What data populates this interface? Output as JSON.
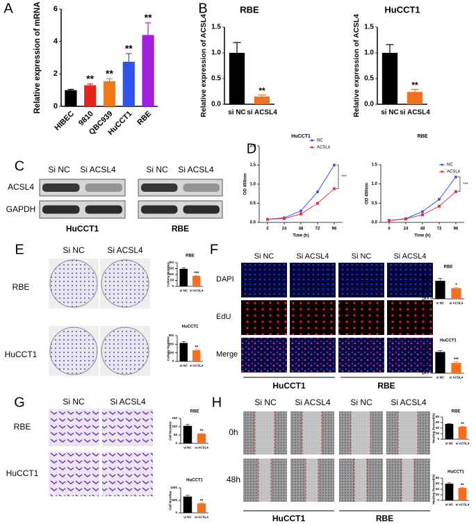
{
  "panel_letters": [
    "A",
    "B",
    "C",
    "D",
    "E",
    "F",
    "G",
    "H"
  ],
  "blot": {
    "columns": [
      "Si NC",
      "Si ACSL4",
      "Si NC",
      "Si ACSL4"
    ],
    "rows": [
      "ACSL4",
      "GAPDH"
    ],
    "cells": [
      "HuCCT1",
      "RBE"
    ]
  },
  "colony": {
    "columns": [
      "Si NC",
      "Si ACSL4"
    ],
    "rows": [
      "RBE",
      "HuCCT1"
    ]
  },
  "edu": {
    "columns": [
      "Si NC",
      "Si ACSL4",
      "Si NC",
      "Si ACSL4"
    ],
    "rows": [
      "DAPI",
      "EdU",
      "Merge"
    ],
    "cells": [
      "HuCCT1",
      "RBE"
    ]
  },
  "transwell": {
    "columns": [
      "Si NC",
      "Si ACSL4"
    ],
    "rows": [
      "RBE",
      "HuCCT1"
    ]
  },
  "wound": {
    "columns": [
      "Si NC",
      "Si ACSL4",
      "Si NC",
      "Si ACSL4"
    ],
    "rows": [
      "0h",
      "48h"
    ],
    "cells": [
      "HuCCT1",
      "RBE"
    ]
  },
  "chart_data": [
    {
      "type": "bar",
      "ylabel": "Relative expression of mRNA",
      "categories": [
        "HIBEC",
        "9810",
        "QBC939",
        "HuCCT1",
        "RBE"
      ],
      "values": [
        1.0,
        1.3,
        1.55,
        2.75,
        4.4
      ],
      "errors": [
        0.05,
        0.08,
        0.15,
        0.5,
        0.75
      ],
      "colors": [
        "#000000",
        "#e8221c",
        "#f07a1a",
        "#2f52e8",
        "#a21fe0"
      ],
      "annotations": [
        null,
        "**",
        "**",
        "**",
        "**"
      ],
      "ylim": [
        0,
        6
      ],
      "yticks": [
        0,
        2,
        4,
        6
      ]
    },
    {
      "type": "bar",
      "title": "RBE",
      "ylabel": "Relative expression of ACSL4",
      "categories": [
        "si NC",
        "si ACSL4"
      ],
      "values": [
        1.0,
        0.15
      ],
      "errors": [
        0.2,
        0.03
      ],
      "colors": [
        "#000000",
        "#f37021"
      ],
      "annotations": [
        null,
        "**"
      ],
      "ylim": [
        0,
        1.5
      ],
      "yticks": [
        {
          "value": 0,
          "label": "0.0"
        },
        0.5,
        {
          "value": 1,
          "label": "1.0"
        },
        1.5
      ]
    },
    {
      "type": "bar",
      "title": "HuCCT1",
      "ylabel": "Relative expression of ACSL4",
      "categories": [
        "si NC",
        "si ACSL4"
      ],
      "values": [
        1.0,
        0.24
      ],
      "errors": [
        0.16,
        0.05
      ],
      "colors": [
        "#000000",
        "#f37021"
      ],
      "annotations": [
        null,
        "**"
      ],
      "ylim": [
        0,
        1.5
      ],
      "yticks": [
        {
          "value": 0,
          "label": "0.0"
        },
        0.5,
        {
          "value": 1,
          "label": "1.0"
        },
        1.5
      ]
    },
    {
      "type": "line",
      "title": "HuCCT1",
      "xlabel": "Time (h)",
      "ylabel": "OD 450nm",
      "x": [
        0,
        24,
        48,
        72,
        96
      ],
      "series": [
        {
          "name": "NC",
          "color": "#3b4fe0",
          "values": [
            0.08,
            0.12,
            0.3,
            0.8,
            1.5
          ]
        },
        {
          "name": "ACSL4",
          "color": "#e8303a",
          "values": [
            0.08,
            0.1,
            0.22,
            0.5,
            0.88
          ]
        }
      ],
      "annotation": "***",
      "legend": "upper left",
      "xlim": [
        -12,
        108
      ],
      "xticks": [
        0,
        24,
        48,
        72,
        96
      ],
      "ylim": [
        0,
        2
      ],
      "yticks": [
        {
          "value": 0,
          "label": "0.0"
        },
        0.5,
        {
          "value": 1,
          "label": "1.0"
        },
        1.5,
        {
          "value": 2,
          "label": "2.0"
        }
      ]
    },
    {
      "type": "line",
      "title": "RBE",
      "xlabel": "Time (h)",
      "ylabel": "OD 450nm",
      "x": [
        0,
        24,
        48,
        72,
        96
      ],
      "series": [
        {
          "name": "NC",
          "color": "#3b4fe0",
          "values": [
            0.05,
            0.1,
            0.28,
            0.6,
            1.18
          ]
        },
        {
          "name": "ACSL4",
          "color": "#e8303a",
          "values": [
            0.05,
            0.09,
            0.2,
            0.42,
            0.8
          ]
        }
      ],
      "annotation": "***",
      "legend": "upper right",
      "xlim": [
        -12,
        108
      ],
      "xticks": [
        0,
        24,
        48,
        72,
        96
      ],
      "ylim": [
        0,
        1.5
      ],
      "yticks": [
        {
          "value": 0,
          "label": "0.0"
        },
        0.5,
        {
          "value": 1,
          "label": "1.0"
        },
        1.5
      ]
    },
    {
      "type": "bar",
      "title": "RBE",
      "ylabel": "Colony Number",
      "categories": [
        "si NC",
        "si ACSL4"
      ],
      "values": [
        148,
        88
      ],
      "errors": [
        10,
        4
      ],
      "colors": [
        "#000000",
        "#f37021"
      ],
      "annotations": [
        null,
        "***"
      ],
      "ylim": [
        0,
        200
      ],
      "yticks": [
        0,
        50,
        100,
        150,
        200
      ]
    },
    {
      "type": "bar",
      "title": "HuCCT1",
      "ylabel": "Colony Number",
      "categories": [
        "si NC",
        "si ACSL4"
      ],
      "values": [
        215,
        130
      ],
      "errors": [
        15,
        10
      ],
      "colors": [
        "#000000",
        "#f37021"
      ],
      "annotations": [
        null,
        "**"
      ],
      "ylim": [
        0,
        300
      ],
      "yticks": [
        0,
        100,
        200,
        300
      ]
    },
    {
      "type": "bar",
      "title": "RBE",
      "ylabel": "EdU positive cells",
      "categories": [
        "si NC",
        "si ACSL4"
      ],
      "values": [
        0.37,
        0.22
      ],
      "errors": [
        0.05,
        0.02
      ],
      "colors": [
        "#000000",
        "#f37021"
      ],
      "annotations": [
        null,
        "*"
      ],
      "ylim": [
        0,
        0.5
      ],
      "yticks": [
        {
          "value": 0,
          "label": "0.0"
        },
        0.2,
        0.4
      ]
    },
    {
      "type": "bar",
      "title": "HuCCT1",
      "ylabel": "EdU positive cells",
      "categories": [
        "si NC",
        "si ACSL4"
      ],
      "values": [
        0.33,
        0.16
      ],
      "errors": [
        0.02,
        0.02
      ],
      "colors": [
        "#000000",
        "#f37021"
      ],
      "annotations": [
        null,
        "***"
      ],
      "ylim": [
        0,
        0.4
      ],
      "yticks": [
        {
          "value": 0,
          "label": "0.0"
        },
        0.2,
        0.4
      ]
    },
    {
      "type": "bar",
      "title": "RBE",
      "ylabel": "Cell Number",
      "categories": [
        "si NC",
        "si ACSL4"
      ],
      "values": [
        105,
        58
      ],
      "errors": [
        8,
        4
      ],
      "colors": [
        "#000000",
        "#f37021"
      ],
      "annotations": [
        null,
        "**"
      ],
      "ylim": [
        0,
        150
      ],
      "yticks": [
        0,
        50,
        100,
        150
      ]
    },
    {
      "type": "bar",
      "title": "HuCCT1",
      "ylabel": "Cell Number",
      "categories": [
        "si NC",
        "si ACSL4"
      ],
      "values": [
        650,
        380
      ],
      "errors": [
        50,
        20
      ],
      "colors": [
        "#000000",
        "#f37021"
      ],
      "annotations": [
        null,
        "**"
      ],
      "ylim": [
        0,
        1000
      ],
      "yticks": [
        0,
        500,
        1000
      ]
    },
    {
      "type": "bar",
      "title": "RBE",
      "ylabel": "Healing Percent(%)",
      "categories": [
        "si NC",
        "si ACSL4"
      ],
      "values": [
        55,
        45
      ],
      "errors": [
        2,
        2
      ],
      "colors": [
        "#000000",
        "#f37021"
      ],
      "annotations": [
        null,
        "**"
      ],
      "ylim": [
        0,
        80
      ],
      "yticks": [
        0,
        20,
        40,
        60,
        80
      ]
    },
    {
      "type": "bar",
      "title": "HuCCT1",
      "ylabel": "Healing Percent(%)",
      "categories": [
        "si NC",
        "si ACSL4"
      ],
      "values": [
        60,
        45
      ],
      "errors": [
        3,
        2
      ],
      "colors": [
        "#000000",
        "#f37021"
      ],
      "annotations": [
        null,
        "**"
      ],
      "ylim": [
        0,
        80
      ],
      "yticks": [
        0,
        20,
        40,
        60,
        80
      ]
    }
  ]
}
